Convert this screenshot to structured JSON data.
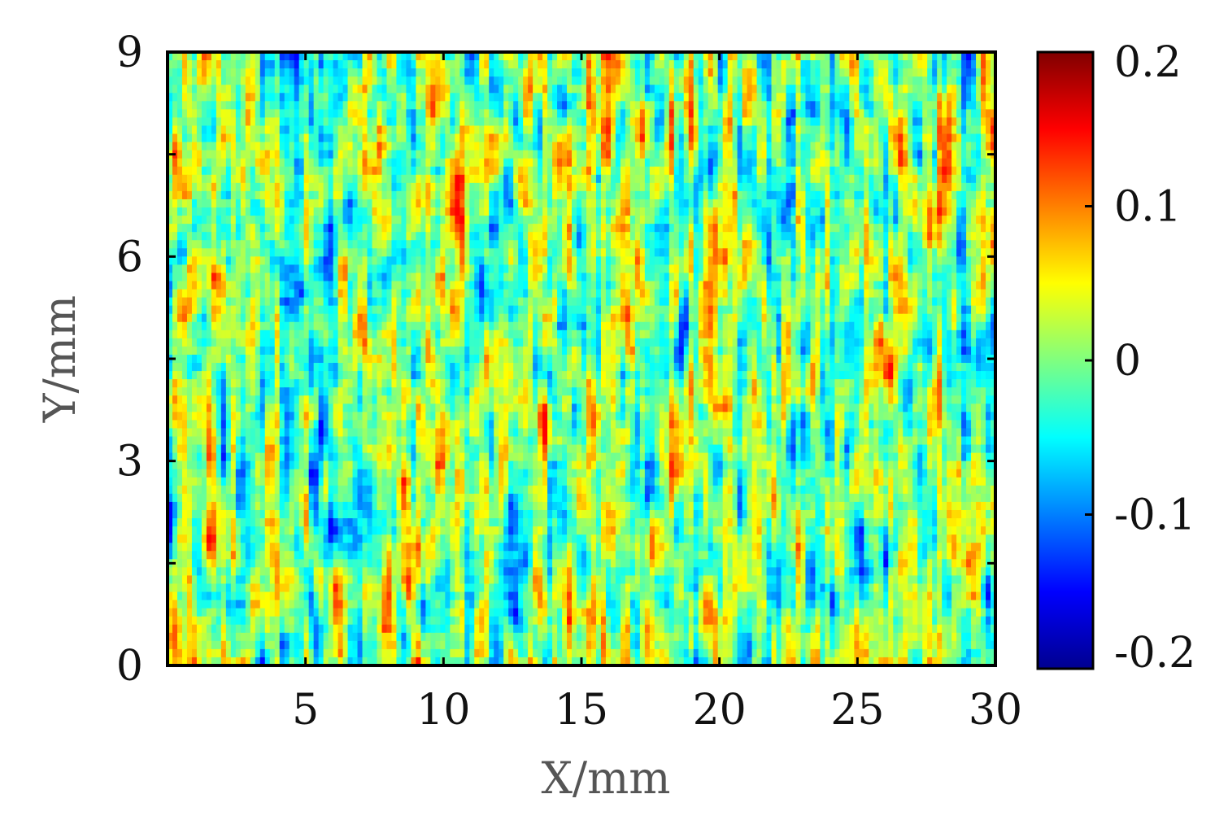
{
  "chart_data": {
    "type": "heatmap",
    "title": "",
    "xlabel": "X/mm",
    "ylabel": "Y/mm",
    "xlim": [
      0,
      30
    ],
    "ylim": [
      0,
      9
    ],
    "x_ticks": [
      "5",
      "10",
      "15",
      "20",
      "25",
      "30"
    ],
    "x_tick_values": [
      5,
      10,
      15,
      20,
      25,
      30
    ],
    "y_ticks": [
      "0",
      "3",
      "6",
      "9"
    ],
    "y_tick_values": [
      0,
      3,
      6,
      9
    ],
    "colorbar": {
      "colormap": "jet",
      "range": [
        -0.2,
        0.2
      ],
      "ticks": [
        "0.2",
        "0.1",
        "0",
        "-0.1",
        "-0.2"
      ],
      "tick_values": [
        0.2,
        0.1,
        0,
        -0.1,
        -0.2
      ]
    },
    "value_range": [
      -0.2,
      0.2
    ],
    "typical_range": [
      -0.15,
      0.15
    ],
    "pattern": "noisy surface height field with vertical streaks"
  }
}
